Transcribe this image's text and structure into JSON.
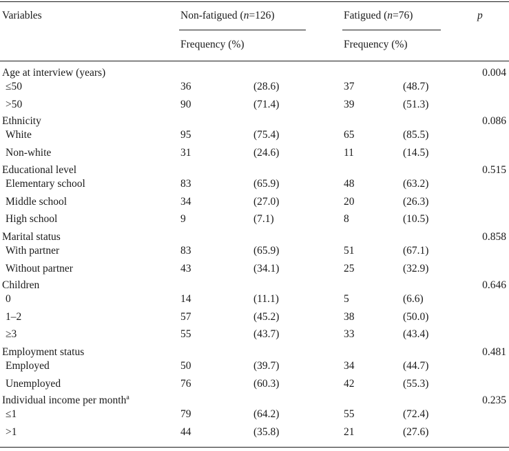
{
  "header": {
    "variables": "Variables",
    "group1": {
      "pre": "Non-fatigued (",
      "n": "n",
      "post": "=126)"
    },
    "group2": {
      "pre": "Fatigued (",
      "n": "n",
      "post": "=76)"
    },
    "p": "p",
    "freq1": "Frequency (%)",
    "freq2": "Frequency (%)"
  },
  "sections": [
    {
      "label": "Age at interview (years)",
      "p": "0.004",
      "rows": [
        {
          "label": "≤50",
          "nf": "36",
          "nf_pct": "(28.6)",
          "f": "37",
          "f_pct": "(48.7)"
        },
        {
          "label": ">50",
          "nf": "90",
          "nf_pct": "(71.4)",
          "f": "39",
          "f_pct": "(51.3)"
        }
      ]
    },
    {
      "label": "Ethnicity",
      "p": "0.086",
      "rows": [
        {
          "label": "White",
          "nf": "95",
          "nf_pct": "(75.4)",
          "f": "65",
          "f_pct": "(85.5)"
        },
        {
          "label": "Non-white",
          "nf": "31",
          "nf_pct": "(24.6)",
          "f": "11",
          "f_pct": "(14.5)"
        }
      ]
    },
    {
      "label": "Educational level",
      "p": "0.515",
      "rows": [
        {
          "label": "Elementary school",
          "nf": "83",
          "nf_pct": "(65.9)",
          "f": "48",
          "f_pct": "(63.2)"
        },
        {
          "label": "Middle school",
          "nf": "34",
          "nf_pct": "(27.0)",
          "f": "20",
          "f_pct": "(26.3)"
        },
        {
          "label": "High school",
          "nf": "9",
          "nf_pct": "(7.1)",
          "f": "8",
          "f_pct": "(10.5)"
        }
      ]
    },
    {
      "label": "Marital status",
      "p": "0.858",
      "rows": [
        {
          "label": "With partner",
          "nf": "83",
          "nf_pct": "(65.9)",
          "f": "51",
          "f_pct": "(67.1)"
        },
        {
          "label": "Without partner",
          "nf": "43",
          "nf_pct": "(34.1)",
          "f": "25",
          "f_pct": "(32.9)"
        }
      ]
    },
    {
      "label": "Children",
      "p": "0.646",
      "rows": [
        {
          "label": "0",
          "nf": "14",
          "nf_pct": "(11.1)",
          "f": "5",
          "f_pct": "(6.6)"
        },
        {
          "label": "1–2",
          "nf": "57",
          "nf_pct": "(45.2)",
          "f": "38",
          "f_pct": "(50.0)"
        },
        {
          "label": "≥3",
          "nf": "55",
          "nf_pct": "(43.7)",
          "f": "33",
          "f_pct": "(43.4)"
        }
      ]
    },
    {
      "label": "Employment status",
      "p": "0.481",
      "rows": [
        {
          "label": "Employed",
          "nf": "50",
          "nf_pct": "(39.7)",
          "f": "34",
          "f_pct": "(44.7)"
        },
        {
          "label": "Unemployed",
          "nf": "76",
          "nf_pct": "(60.3)",
          "f": "42",
          "f_pct": "(55.3)"
        }
      ]
    },
    {
      "label": "Individual income per month",
      "label_sup": "a",
      "p": "0.235",
      "rows": [
        {
          "label": "≤1",
          "nf": "79",
          "nf_pct": "(64.2)",
          "f": "55",
          "f_pct": "(72.4)"
        },
        {
          "label": ">1",
          "nf": "44",
          "nf_pct": "(35.8)",
          "f": "21",
          "f_pct": "(27.6)"
        }
      ]
    }
  ]
}
